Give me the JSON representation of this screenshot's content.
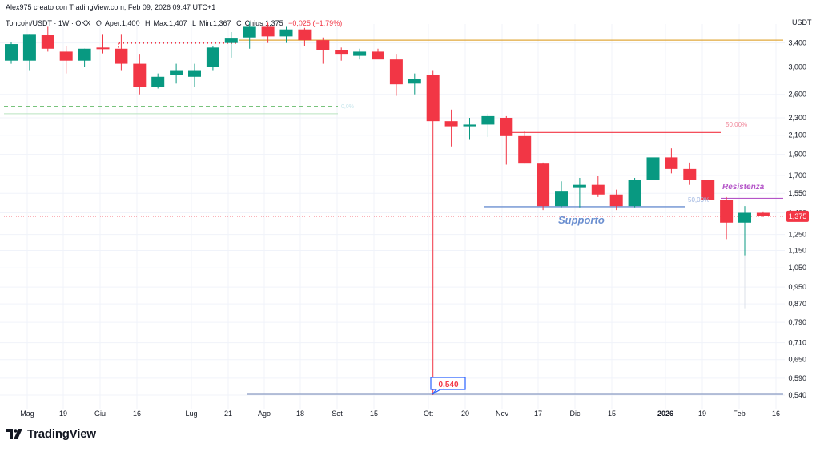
{
  "header": "Alex975 creato con TradingView.com, Feb 09, 2026 09:47 UTC+1",
  "legend": {
    "symbol": "Toncoin/USDT · 1W · OKX",
    "open_label": "O",
    "open": "Aper.1,400",
    "high_label": "H",
    "high": "Max.1,407",
    "low_label": "L",
    "low": "Min.1,367",
    "close_label": "C",
    "close": "Chius.1,375",
    "change": "−0,025 (−1,79%)"
  },
  "brand": {
    "name": "TradingView",
    "logo_icon": "tradingview-logo-icon"
  },
  "colors": {
    "up": "#089981",
    "down": "#f23645",
    "support": "#6b8fd0",
    "resistance": "#b455c8",
    "orange": "#e0a83b",
    "fib": "#f0879a",
    "green_dash": "#4caf50",
    "grid": "#f0f3fa"
  },
  "chart_data": {
    "type": "candlestick",
    "timeframe": "1W",
    "y_unit": "USDT",
    "y_scale": "log",
    "y_range": [
      0.52,
      3.6
    ],
    "y_ticks": [
      "3,400",
      "3,000",
      "2,600",
      "2,300",
      "2,100",
      "1,900",
      "1,700",
      "1,550",
      "1,400",
      "1,250",
      "1,150",
      "1,050",
      "0,950",
      "0,870",
      "0,790",
      "0,710",
      "0,650",
      "0,590",
      "0,540"
    ],
    "x_ticks": [
      "Mag",
      "19",
      "Giu",
      "16",
      "Lug",
      "21",
      "Ago",
      "18",
      "Set",
      "15",
      "Ott",
      "20",
      "Nov",
      "17",
      "Dic",
      "15",
      "2026",
      "19",
      "Feb",
      "16"
    ],
    "bold_x_tick": "2026",
    "candles": [
      {
        "o": 3.1,
        "h": 3.42,
        "l": 3.05,
        "c": 3.38
      },
      {
        "o": 3.1,
        "h": 3.55,
        "l": 2.95,
        "c": 3.55
      },
      {
        "o": 3.54,
        "h": 3.7,
        "l": 3.25,
        "c": 3.3
      },
      {
        "o": 3.25,
        "h": 3.35,
        "l": 2.9,
        "c": 3.1
      },
      {
        "o": 3.1,
        "h": 3.3,
        "l": 3.0,
        "c": 3.3
      },
      {
        "o": 3.32,
        "h": 3.55,
        "l": 3.22,
        "c": 3.3
      },
      {
        "o": 3.3,
        "h": 3.55,
        "l": 2.95,
        "c": 3.05
      },
      {
        "o": 3.05,
        "h": 3.2,
        "l": 2.6,
        "c": 2.7
      },
      {
        "o": 2.7,
        "h": 2.9,
        "l": 2.68,
        "c": 2.85
      },
      {
        "o": 2.88,
        "h": 3.05,
        "l": 2.75,
        "c": 2.95
      },
      {
        "o": 2.85,
        "h": 3.05,
        "l": 2.7,
        "c": 2.95
      },
      {
        "o": 3.0,
        "h": 3.35,
        "l": 2.95,
        "c": 3.32
      },
      {
        "o": 3.4,
        "h": 3.6,
        "l": 3.15,
        "c": 3.48
      },
      {
        "o": 3.5,
        "h": 3.8,
        "l": 3.3,
        "c": 3.7
      },
      {
        "o": 3.7,
        "h": 3.78,
        "l": 3.4,
        "c": 3.52
      },
      {
        "o": 3.52,
        "h": 3.7,
        "l": 3.4,
        "c": 3.65
      },
      {
        "o": 3.65,
        "h": 3.68,
        "l": 3.35,
        "c": 3.45
      },
      {
        "o": 3.45,
        "h": 3.5,
        "l": 3.05,
        "c": 3.28
      },
      {
        "o": 3.28,
        "h": 3.32,
        "l": 3.1,
        "c": 3.2
      },
      {
        "o": 3.18,
        "h": 3.3,
        "l": 3.12,
        "c": 3.25
      },
      {
        "o": 3.25,
        "h": 3.3,
        "l": 3.15,
        "c": 3.12
      },
      {
        "o": 3.12,
        "h": 3.2,
        "l": 2.58,
        "c": 2.74
      },
      {
        "o": 2.75,
        "h": 2.9,
        "l": 2.6,
        "c": 2.82
      },
      {
        "o": 2.88,
        "h": 2.95,
        "l": 0.54,
        "c": 2.26
      },
      {
        "o": 2.26,
        "h": 2.4,
        "l": 1.98,
        "c": 2.2
      },
      {
        "o": 2.2,
        "h": 2.3,
        "l": 2.05,
        "c": 2.22
      },
      {
        "o": 2.22,
        "h": 2.35,
        "l": 2.08,
        "c": 2.32
      },
      {
        "o": 2.3,
        "h": 2.32,
        "l": 1.8,
        "c": 2.09
      },
      {
        "o": 2.09,
        "h": 2.15,
        "l": 1.81,
        "c": 1.81
      },
      {
        "o": 1.81,
        "h": 1.82,
        "l": 1.42,
        "c": 1.45
      },
      {
        "o": 1.45,
        "h": 1.65,
        "l": 1.44,
        "c": 1.57
      },
      {
        "o": 1.6,
        "h": 1.68,
        "l": 1.44,
        "c": 1.62
      },
      {
        "o": 1.62,
        "h": 1.7,
        "l": 1.52,
        "c": 1.54
      },
      {
        "o": 1.54,
        "h": 1.58,
        "l": 1.42,
        "c": 1.45
      },
      {
        "o": 1.45,
        "h": 1.68,
        "l": 1.44,
        "c": 1.66
      },
      {
        "o": 1.66,
        "h": 1.92,
        "l": 1.55,
        "c": 1.87
      },
      {
        "o": 1.87,
        "h": 1.96,
        "l": 1.72,
        "c": 1.76
      },
      {
        "o": 1.76,
        "h": 1.82,
        "l": 1.62,
        "c": 1.66
      },
      {
        "o": 1.66,
        "h": 1.66,
        "l": 1.5,
        "c": 1.5
      },
      {
        "o": 1.5,
        "h": 1.52,
        "l": 1.22,
        "c": 1.33
      },
      {
        "o": 1.33,
        "h": 1.45,
        "l": 0.85,
        "c": 1.4
      },
      {
        "o": 1.4,
        "h": 1.41,
        "l": 1.37,
        "c": 1.375
      }
    ],
    "last_price_label": "1,375",
    "low_marker_label": "0,540",
    "annotations": [
      {
        "text": "Supporto",
        "color": "#6b8fd0"
      },
      {
        "text": "Resistenza",
        "color": "#b455c8"
      },
      {
        "text": "50,00%",
        "color": "#f0879a"
      },
      {
        "text": "50,00%",
        "color": "#9db4e0"
      },
      {
        "text": "0,0%",
        "color": "#c6e5ec"
      }
    ],
    "levels": {
      "orange": 3.45,
      "red_dotted": 3.4,
      "green_dashed": 2.44,
      "green_solid": 2.35,
      "fib_50": 2.13,
      "resistance": 1.51,
      "support": 1.445,
      "last_price_line": 1.375,
      "bottom_line": 0.54
    }
  }
}
